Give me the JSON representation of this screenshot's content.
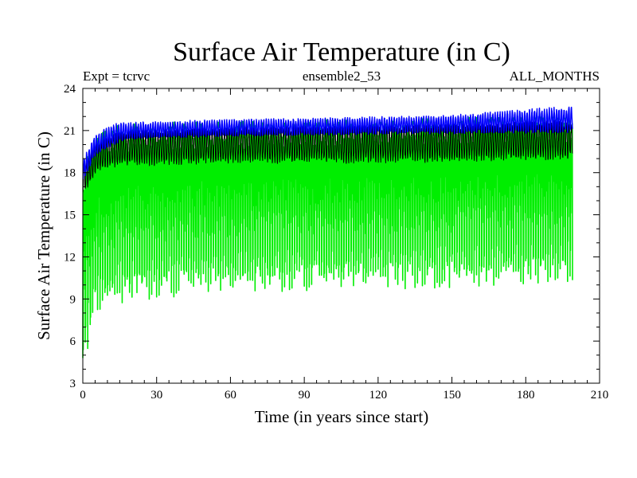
{
  "chart_data": {
    "type": "line",
    "title": "Surface Air Temperature (in C)",
    "subtitle_left": "Expt = tcrvc",
    "subtitle_center": "ensemble2_53",
    "subtitle_right": "ALL_MONTHS",
    "xlabel": "Time (in years since start)",
    "ylabel": "Surface Air Temperature (in C)",
    "xlim": [
      0,
      210
    ],
    "ylim": [
      3,
      24
    ],
    "x_ticks": [
      0,
      30,
      60,
      90,
      120,
      150,
      180,
      210
    ],
    "y_ticks": [
      3,
      6,
      9,
      12,
      15,
      18,
      21,
      24
    ],
    "x_tick_labels": [
      "0",
      "30",
      "60",
      "90",
      "120",
      "150",
      "180",
      "210"
    ],
    "y_tick_labels": [
      "3",
      "6",
      "9",
      "12",
      "15",
      "18",
      "21",
      "24"
    ],
    "data_x_range": [
      0,
      199
    ],
    "series": [
      {
        "name": "green (monthly, wide seasonal range)",
        "color": "#00ee00",
        "envelope_years": [
          0,
          5,
          10,
          20,
          40,
          60,
          100,
          150,
          199
        ],
        "envelope_min": [
          4.5,
          8.3,
          9.0,
          9.6,
          9.9,
          10.1,
          10.3,
          10.5,
          10.9
        ],
        "envelope_max": [
          17.5,
          19.8,
          20.3,
          20.6,
          20.7,
          20.8,
          20.9,
          21.0,
          21.2
        ]
      },
      {
        "name": "black (monthly, upper range)",
        "color": "#000000",
        "envelope_years": [
          0,
          5,
          10,
          20,
          40,
          60,
          100,
          150,
          199
        ],
        "envelope_min": [
          16.5,
          18.0,
          18.5,
          18.7,
          18.8,
          18.9,
          18.9,
          19.0,
          19.2
        ],
        "envelope_max": [
          18.5,
          20.0,
          20.6,
          20.9,
          21.0,
          21.1,
          21.2,
          21.3,
          21.5
        ]
      },
      {
        "name": "blue (monthly, warm band)",
        "color": "#0000ff",
        "envelope_years": [
          0,
          5,
          10,
          15,
          20,
          40,
          60,
          100,
          150,
          199
        ],
        "envelope_min": [
          17.5,
          19.3,
          19.9,
          20.3,
          20.5,
          20.6,
          20.7,
          20.8,
          20.9,
          21.0
        ],
        "envelope_max": [
          18.8,
          20.6,
          21.1,
          21.5,
          21.5,
          21.6,
          21.7,
          21.8,
          22.0,
          22.6
        ]
      }
    ]
  }
}
